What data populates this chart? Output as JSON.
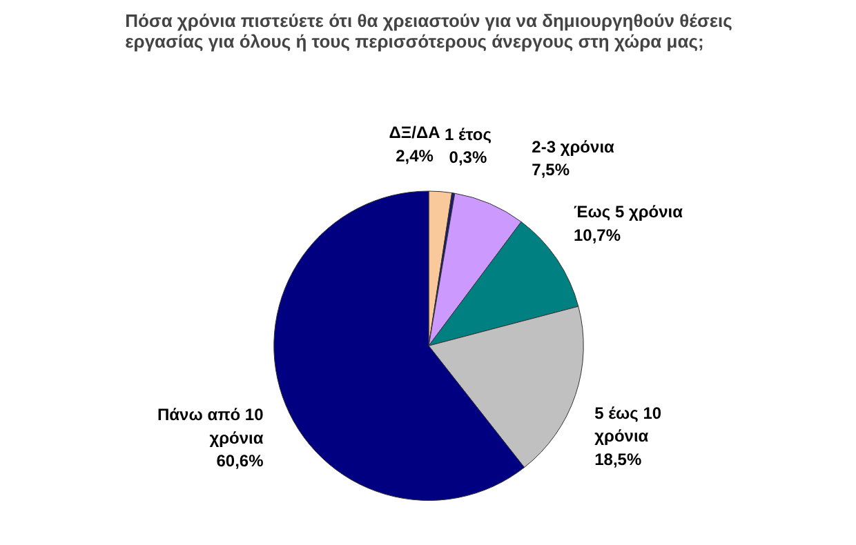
{
  "chart_data": {
    "type": "pie",
    "title": "Πόσα χρόνια πιστεύετε ότι θα χρειαστούν για να δημιουργηθούν θέσεις εργασίας για όλους ή τους περισσότερους άνεργους στη χώρα μας;",
    "categories": [
      "ΔΞ/ΔΑ",
      "1 έτος",
      "2-3 χρόνια",
      "Έως 5 χρόνια",
      "5 έως 10 χρόνια",
      "Πάνω από 10 χρόνια"
    ],
    "values": [
      2.4,
      0.3,
      7.5,
      10.7,
      18.5,
      60.6
    ],
    "value_labels": [
      "2,4%",
      "0,3%",
      "7,5%",
      "10,7%",
      "18,5%",
      "60,6%"
    ],
    "colors": [
      "#f9c89b",
      "#1a1a6e",
      "#cc99ff",
      "#008080",
      "#c0c0c0",
      "#000080"
    ]
  }
}
